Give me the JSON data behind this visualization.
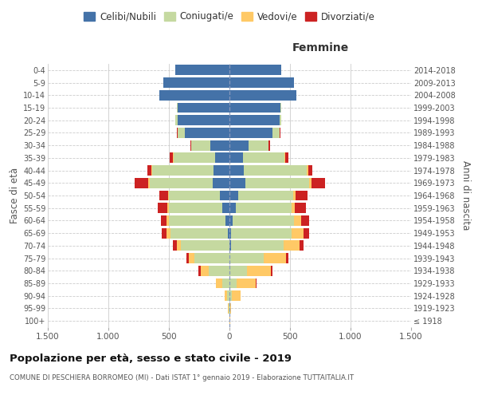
{
  "age_groups": [
    "100+",
    "95-99",
    "90-94",
    "85-89",
    "80-84",
    "75-79",
    "70-74",
    "65-69",
    "60-64",
    "55-59",
    "50-54",
    "45-49",
    "40-44",
    "35-39",
    "30-34",
    "25-29",
    "20-24",
    "15-19",
    "10-14",
    "5-9",
    "0-4"
  ],
  "birth_years": [
    "≤ 1918",
    "1919-1923",
    "1924-1928",
    "1929-1933",
    "1934-1938",
    "1939-1943",
    "1944-1948",
    "1949-1953",
    "1954-1958",
    "1959-1963",
    "1964-1968",
    "1969-1973",
    "1974-1978",
    "1979-1983",
    "1984-1988",
    "1989-1993",
    "1994-1998",
    "1999-2003",
    "2004-2008",
    "2009-2013",
    "2014-2018"
  ],
  "male": {
    "celibi": [
      0,
      0,
      0,
      0,
      0,
      0,
      0,
      15,
      30,
      60,
      80,
      140,
      130,
      120,
      160,
      370,
      430,
      430,
      580,
      545,
      450
    ],
    "coniugati": [
      0,
      5,
      20,
      60,
      170,
      290,
      400,
      470,
      470,
      440,
      420,
      520,
      510,
      340,
      155,
      60,
      15,
      5,
      0,
      0,
      0
    ],
    "vedovi": [
      0,
      5,
      20,
      50,
      70,
      45,
      35,
      35,
      20,
      10,
      5,
      10,
      5,
      5,
      0,
      0,
      0,
      0,
      0,
      0,
      0
    ],
    "divorziati": [
      0,
      0,
      0,
      5,
      15,
      20,
      35,
      40,
      45,
      80,
      75,
      110,
      30,
      30,
      10,
      5,
      0,
      0,
      0,
      0,
      0
    ]
  },
  "female": {
    "nubili": [
      0,
      0,
      0,
      0,
      0,
      0,
      10,
      15,
      25,
      55,
      75,
      130,
      120,
      115,
      155,
      355,
      415,
      420,
      550,
      530,
      430
    ],
    "coniugate": [
      0,
      5,
      20,
      60,
      145,
      285,
      440,
      500,
      510,
      455,
      450,
      530,
      520,
      340,
      165,
      60,
      15,
      5,
      0,
      0,
      0
    ],
    "vedove": [
      5,
      10,
      70,
      160,
      200,
      185,
      130,
      100,
      55,
      30,
      20,
      20,
      10,
      5,
      5,
      0,
      0,
      0,
      0,
      0,
      0
    ],
    "divorziate": [
      0,
      0,
      0,
      5,
      10,
      20,
      30,
      40,
      70,
      90,
      100,
      110,
      35,
      25,
      10,
      5,
      0,
      0,
      0,
      0,
      0
    ]
  },
  "colors": {
    "celibi": "#4472a8",
    "coniugati": "#c5d9a0",
    "vedovi": "#ffc966",
    "divorziati": "#cc2222"
  },
  "title": "Popolazione per età, sesso e stato civile - 2019",
  "subtitle": "COMUNE DI PESCHIERA BORROMEO (MI) - Dati ISTAT 1° gennaio 2019 - Elaborazione TUTTAITALIA.IT",
  "ylabel": "Fasce di età",
  "ylabel_right": "Anni di nascita",
  "xlabel_right": "Femmine",
  "xlim": 1500,
  "background_color": "#ffffff",
  "grid_color": "#cccccc"
}
